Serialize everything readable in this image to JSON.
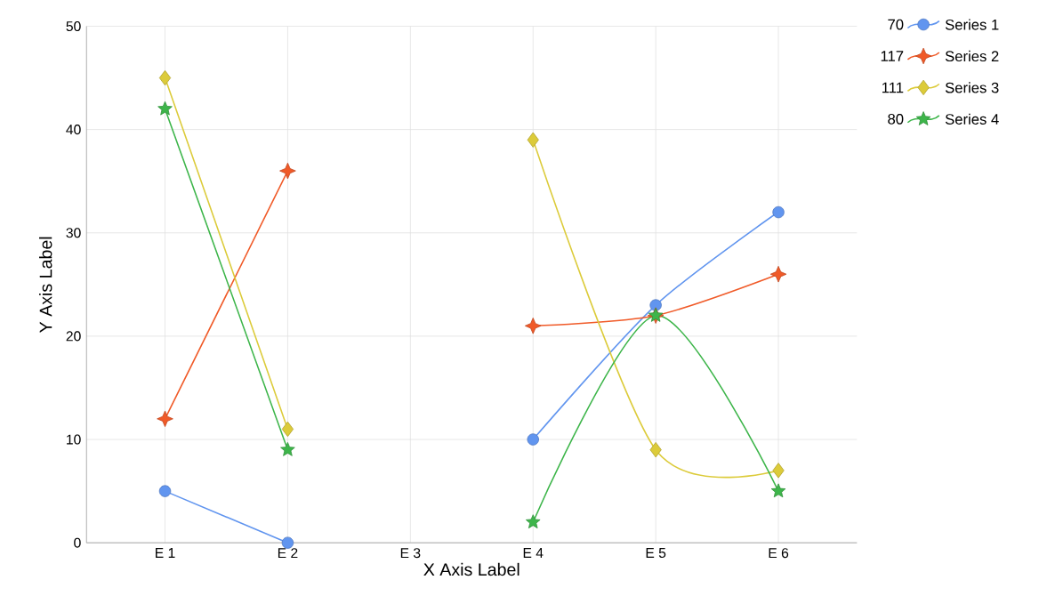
{
  "chart_data": {
    "type": "line",
    "xlabel": "X Axis Label",
    "ylabel": "Y Axis Label",
    "categories": [
      "E 1",
      "E 2",
      "E 3",
      "E 4",
      "E 5",
      "E 6"
    ],
    "series": [
      {
        "name": "Series 1",
        "color": "#6195ef",
        "marker": "circle",
        "values": [
          5,
          0,
          null,
          10,
          23,
          32
        ]
      },
      {
        "name": "Series 2",
        "color": "#f05a28",
        "marker": "cross",
        "values": [
          12,
          36,
          null,
          21,
          22,
          26
        ]
      },
      {
        "name": "Series 3",
        "color": "#dccb3a",
        "marker": "diamond",
        "values": [
          45,
          11,
          null,
          39,
          9,
          7
        ]
      },
      {
        "name": "Series 4",
        "color": "#3db54a",
        "marker": "star",
        "values": [
          42,
          9,
          null,
          2,
          22,
          5
        ]
      }
    ],
    "annotations": [
      "70",
      "117",
      "111",
      "80"
    ],
    "ylim": [
      0,
      50
    ],
    "yticks": [
      0,
      10,
      20,
      30,
      40,
      50
    ],
    "grid": true,
    "legend": "top right"
  }
}
